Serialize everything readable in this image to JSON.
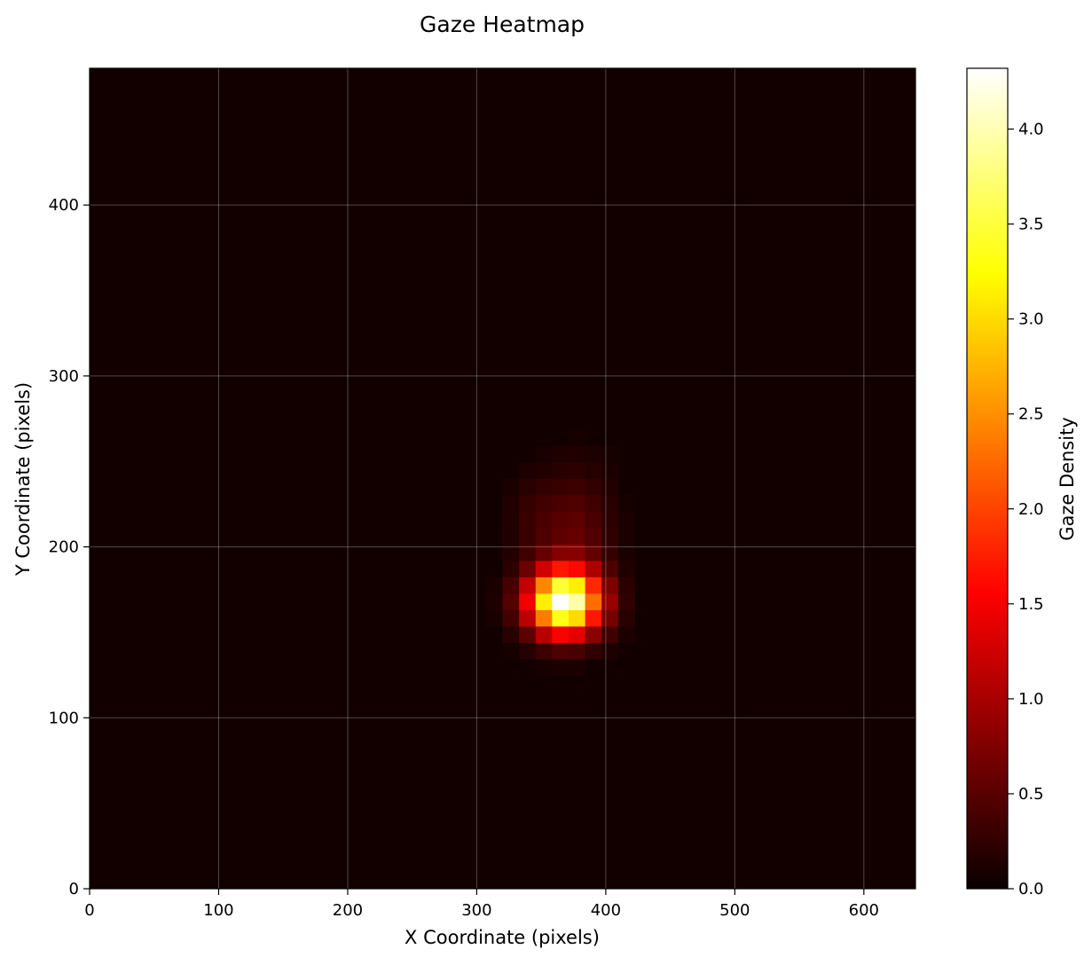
{
  "chart_data": {
    "type": "heatmap",
    "title": "Gaze Heatmap",
    "xlabel": "X Coordinate (pixels)",
    "ylabel": "Y Coordinate (pixels)",
    "xlim": [
      0,
      640
    ],
    "ylim": [
      0,
      480
    ],
    "x_ticks": [
      0,
      100,
      200,
      300,
      400,
      500,
      600
    ],
    "y_ticks": [
      0,
      100,
      200,
      300,
      400
    ],
    "grid": true,
    "bin_size_x": 12.8,
    "bin_size_y": 9.6,
    "colormap": "hot",
    "colorbar": {
      "label": "Gaze Density",
      "min": 0.0,
      "max": 4.32,
      "ticks": [
        0.0,
        0.5,
        1.0,
        1.5,
        2.0,
        2.5,
        3.0,
        3.5,
        4.0
      ],
      "tick_labels": [
        "0.0",
        "0.5",
        "1.0",
        "1.5",
        "2.0",
        "2.5",
        "3.0",
        "3.5",
        "4.0"
      ],
      "colors": [
        "#0a0000",
        "#ff0000",
        "#ffff00",
        "#ffffff"
      ]
    },
    "hotspots": [
      {
        "x": 368,
        "y": 168,
        "peak": 4.32,
        "sigma_x": 19,
        "sigma_y": 13
      },
      {
        "x": 378,
        "y": 210,
        "peak": 0.45,
        "sigma_x": 18,
        "sigma_y": 24
      },
      {
        "x": 345,
        "y": 215,
        "peak": 0.22,
        "sigma_x": 14,
        "sigma_y": 18
      }
    ],
    "background_density": 0.05
  }
}
